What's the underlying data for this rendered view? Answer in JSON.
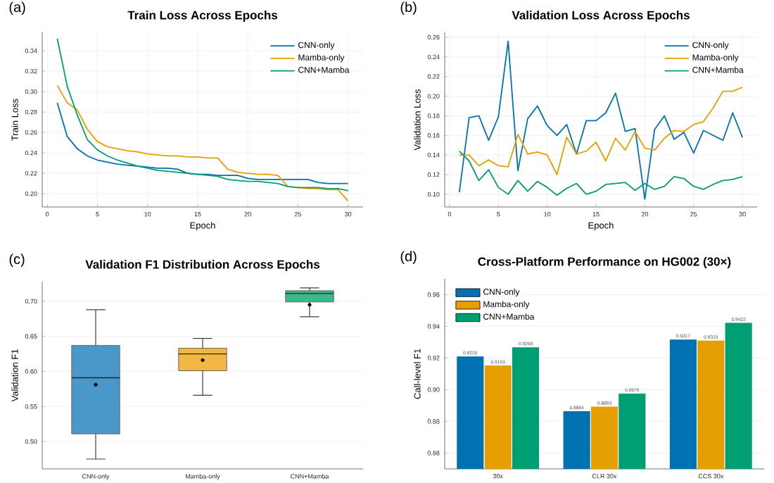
{
  "chart_data": [
    {
      "type": "line",
      "title": "Train Loss Across Epochs",
      "xlabel": "Epoch",
      "ylabel": "Train Loss",
      "annotations": [
        "(a)"
      ],
      "grid": true,
      "legend": "top right",
      "x": [
        1,
        2,
        3,
        4,
        5,
        6,
        7,
        8,
        9,
        10,
        11,
        12,
        13,
        14,
        15,
        16,
        17,
        18,
        19,
        20,
        21,
        22,
        23,
        24,
        25,
        26,
        27,
        28,
        29,
        30
      ],
      "xlim": [
        -0.5,
        31.5
      ],
      "xticks": [
        0,
        5,
        10,
        15,
        20,
        25,
        30
      ],
      "ylim": [
        0.187,
        0.358
      ],
      "yticks": [
        {
          "value": 0.2,
          "label": "0.20"
        },
        {
          "value": 0.22,
          "label": "0.22"
        },
        {
          "value": 0.24,
          "label": "0.24"
        },
        {
          "value": 0.26,
          "label": "0.26"
        },
        {
          "value": 0.28,
          "label": "0.28"
        },
        {
          "value": 0.3,
          "label": "0.30"
        },
        {
          "value": 0.32,
          "label": "0.32"
        },
        {
          "value": 0.34,
          "label": "0.34"
        }
      ],
      "series": [
        {
          "name": "CNN-only",
          "color": "#0072b2",
          "values": [
            0.289,
            0.256,
            0.244,
            0.237,
            0.233,
            0.231,
            0.229,
            0.228,
            0.227,
            0.226,
            0.225,
            0.225,
            0.224,
            0.22,
            0.219,
            0.219,
            0.218,
            0.218,
            0.218,
            0.215,
            0.214,
            0.214,
            0.214,
            0.214,
            0.214,
            0.214,
            0.211,
            0.21,
            0.21,
            0.21
          ]
        },
        {
          "name": "Mamba-only",
          "color": "#e69f00",
          "values": [
            0.306,
            0.289,
            0.282,
            0.263,
            0.251,
            0.246,
            0.244,
            0.242,
            0.241,
            0.239,
            0.238,
            0.237,
            0.237,
            0.236,
            0.236,
            0.235,
            0.235,
            0.224,
            0.221,
            0.22,
            0.219,
            0.219,
            0.218,
            0.207,
            0.206,
            0.205,
            0.205,
            0.204,
            0.204,
            0.193
          ]
        },
        {
          "name": "CNN+Mamba",
          "color": "#009e73",
          "values": [
            0.352,
            0.305,
            0.277,
            0.253,
            0.243,
            0.237,
            0.233,
            0.23,
            0.227,
            0.225,
            0.223,
            0.222,
            0.221,
            0.22,
            0.219,
            0.218,
            0.217,
            0.214,
            0.213,
            0.212,
            0.212,
            0.211,
            0.21,
            0.207,
            0.206,
            0.206,
            0.206,
            0.205,
            0.205,
            0.203
          ]
        }
      ]
    },
    {
      "type": "line",
      "title": "Validation Loss Across Epochs",
      "xlabel": "Epoch",
      "ylabel": "Validation Loss",
      "annotations": [
        "(b)"
      ],
      "grid": true,
      "legend": "top right",
      "x": [
        1,
        2,
        3,
        4,
        5,
        6,
        7,
        8,
        9,
        10,
        11,
        12,
        13,
        14,
        15,
        16,
        17,
        18,
        19,
        20,
        21,
        22,
        23,
        24,
        25,
        26,
        27,
        28,
        29,
        30
      ],
      "xlim": [
        -0.5,
        31.5
      ],
      "xticks": [
        0,
        5,
        10,
        15,
        20,
        25,
        30
      ],
      "ylim": [
        0.087,
        0.265
      ],
      "yticks": [
        {
          "value": 0.1,
          "label": "0.10"
        },
        {
          "value": 0.12,
          "label": "0.12"
        },
        {
          "value": 0.14,
          "label": "0.14"
        },
        {
          "value": 0.16,
          "label": "0.16"
        },
        {
          "value": 0.18,
          "label": "0.18"
        },
        {
          "value": 0.2,
          "label": "0.20"
        },
        {
          "value": 0.22,
          "label": "0.22"
        },
        {
          "value": 0.24,
          "label": "0.24"
        },
        {
          "value": 0.26,
          "label": "0.26"
        }
      ],
      "series": [
        {
          "name": "CNN-only",
          "color": "#0072b2",
          "values": [
            0.102,
            0.178,
            0.18,
            0.155,
            0.179,
            0.256,
            0.124,
            0.177,
            0.19,
            0.17,
            0.16,
            0.171,
            0.141,
            0.175,
            0.175,
            0.183,
            0.203,
            0.164,
            0.167,
            0.095,
            0.166,
            0.18,
            0.156,
            0.163,
            0.142,
            0.165,
            0.16,
            0.155,
            0.183,
            0.158
          ]
        },
        {
          "name": "Mamba-only",
          "color": "#e69f00",
          "values": [
            0.14,
            0.14,
            0.129,
            0.135,
            0.129,
            0.128,
            0.161,
            0.141,
            0.143,
            0.14,
            0.12,
            0.158,
            0.141,
            0.144,
            0.153,
            0.134,
            0.157,
            0.145,
            0.164,
            0.147,
            0.145,
            0.157,
            0.165,
            0.164,
            0.171,
            0.174,
            0.188,
            0.205,
            0.205,
            0.209
          ]
        },
        {
          "name": "CNN+Mamba",
          "color": "#009e73",
          "values": [
            0.144,
            0.134,
            0.114,
            0.125,
            0.107,
            0.1,
            0.114,
            0.103,
            0.113,
            0.107,
            0.099,
            0.106,
            0.111,
            0.1,
            0.103,
            0.11,
            0.111,
            0.112,
            0.104,
            0.111,
            0.105,
            0.108,
            0.118,
            0.116,
            0.108,
            0.105,
            0.11,
            0.114,
            0.115,
            0.118
          ]
        }
      ]
    },
    {
      "type": "box",
      "title": "Validation F1 Distribution Across Epochs",
      "ylabel": "Validation F1",
      "annotations": [
        "(c)"
      ],
      "grid": "y",
      "categories": [
        "CNN-only",
        "Mamba-only",
        "CNN+Mamba"
      ],
      "colors": [
        "#4a98c9",
        "#f2b843",
        "#3cb98a"
      ],
      "ylim": [
        0.461,
        0.728
      ],
      "yticks": [
        {
          "value": 0.5,
          "label": "0.50"
        },
        {
          "value": 0.55,
          "label": "0.55"
        },
        {
          "value": 0.6,
          "label": "0.60"
        },
        {
          "value": 0.65,
          "label": "0.65"
        },
        {
          "value": 0.7,
          "label": "0.70"
        }
      ],
      "boxes": [
        {
          "low": 0.475,
          "q1": 0.511,
          "median": 0.591,
          "q3": 0.637,
          "high": 0.688,
          "mean": 0.581
        },
        {
          "low": 0.566,
          "q1": 0.601,
          "median": 0.625,
          "q3": 0.633,
          "high": 0.647,
          "mean": 0.616
        },
        {
          "low": 0.678,
          "q1": 0.699,
          "median": 0.711,
          "q3": 0.715,
          "high": 0.719,
          "mean": 0.695
        }
      ]
    },
    {
      "type": "bar",
      "title": "Cross-Platform Performance on HG002 (30×)",
      "ylabel": "Call-level F1",
      "annotations": [
        "(d)"
      ],
      "grid": "y",
      "legend": "top left",
      "categories": [
        "30x",
        "CLR 30x",
        "CCS 30x"
      ],
      "ylim": [
        0.85,
        0.97
      ],
      "yticks": [
        {
          "value": 0.86,
          "label": "0.86"
        },
        {
          "value": 0.88,
          "label": "0.88"
        },
        {
          "value": 0.9,
          "label": "0.90"
        },
        {
          "value": 0.92,
          "label": "0.92"
        },
        {
          "value": 0.94,
          "label": "0.94"
        },
        {
          "value": 0.96,
          "label": "0.96"
        }
      ],
      "series": [
        {
          "name": "CNN-only",
          "color": "#0072b2",
          "values": [
            0.921,
            0.8864,
            0.9317
          ],
          "value_labels": [
            "0.9210",
            "0.8864",
            "0.9317"
          ]
        },
        {
          "name": "Mamba-only",
          "color": "#e69f00",
          "values": [
            0.9153,
            0.8893,
            0.931
          ],
          "value_labels": [
            "0.9153",
            "0.8893",
            "0.9310"
          ]
        },
        {
          "name": "CNN+Mamba",
          "color": "#009e73",
          "values": [
            0.9268,
            0.8975,
            0.9422
          ],
          "value_labels": [
            "0.9268",
            "0.8975",
            "0.9422"
          ]
        }
      ]
    }
  ]
}
